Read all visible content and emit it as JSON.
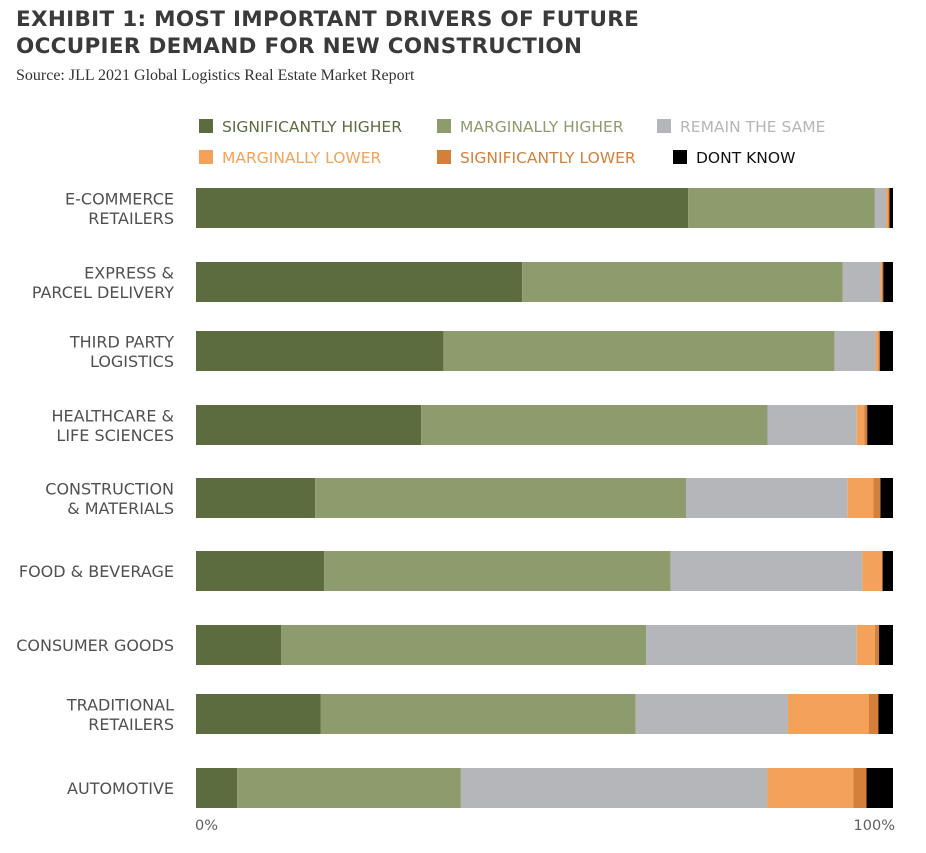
{
  "title_line1": "EXHIBIT 1: MOST IMPORTANT DRIVERS OF FUTURE",
  "title_line2": "OCCUPIER DEMAND FOR NEW CONSTRUCTION",
  "source": "Source: JLL 2021 Global Logistics Real Estate Market Report",
  "chart_data": {
    "type": "bar",
    "orientation": "horizontal",
    "stacked": true,
    "categories": [
      [
        "E-COMMERCE",
        "RETAILERS"
      ],
      [
        "EXPRESS &",
        "PARCEL DELIVERY"
      ],
      [
        "THIRD PARTY",
        "LOGISTICS"
      ],
      [
        "HEALTHCARE &",
        "LIFE SCIENCES"
      ],
      [
        "CONSTRUCTION",
        "& MATERIALS"
      ],
      [
        "FOOD & BEVERAGE"
      ],
      [
        "CONSUMER GOODS"
      ],
      [
        "TRADITIONAL",
        "RETAILERS"
      ],
      [
        "AUTOMOTIVE"
      ]
    ],
    "series": [
      {
        "name": "SIGNIFICANTLY HIGHER",
        "color": "#5c6c3f",
        "label_color": "#5c6c3f",
        "values": [
          70.6,
          46.8,
          35.5,
          32.3,
          17.1,
          18.4,
          12.2,
          17.9,
          5.9
        ]
      },
      {
        "name": "MARGINALLY HIGHER",
        "color": "#8e9b6c",
        "label_color": "#8e9b6c",
        "values": [
          26.8,
          46.0,
          56.1,
          49.7,
          53.2,
          49.7,
          52.4,
          45.3,
          32.1
        ]
      },
      {
        "name": "REMAIN THE SAME",
        "color": "#b5b6ba",
        "label_color": "#b5b6ba",
        "values": [
          1.6,
          5.4,
          5.9,
          12.8,
          23.2,
          27.5,
          30.2,
          21.9,
          44.0
        ]
      },
      {
        "name": "MARGINALLY LOWER",
        "color": "#f4a25a",
        "label_color": "#f4a25a",
        "values": [
          0.3,
          0.2,
          0.4,
          1.1,
          3.7,
          2.9,
          2.6,
          11.6,
          12.3
        ]
      },
      {
        "name": "SIGNIFICANTLY LOWER",
        "color": "#d5803a",
        "label_color": "#d5803a",
        "values": [
          0.2,
          0.2,
          0.2,
          0.4,
          1.0,
          0.0,
          0.6,
          1.4,
          1.9
        ]
      },
      {
        "name": "DONT KNOW",
        "color": "#000000",
        "label_color": "#111111",
        "values": [
          0.5,
          1.4,
          1.9,
          3.7,
          1.8,
          1.5,
          2.0,
          2.1,
          3.8
        ]
      }
    ],
    "x_tick_labels": [
      "0%",
      "100%"
    ],
    "xlim": [
      0,
      100
    ],
    "legend_position": "top",
    "grid": false
  }
}
